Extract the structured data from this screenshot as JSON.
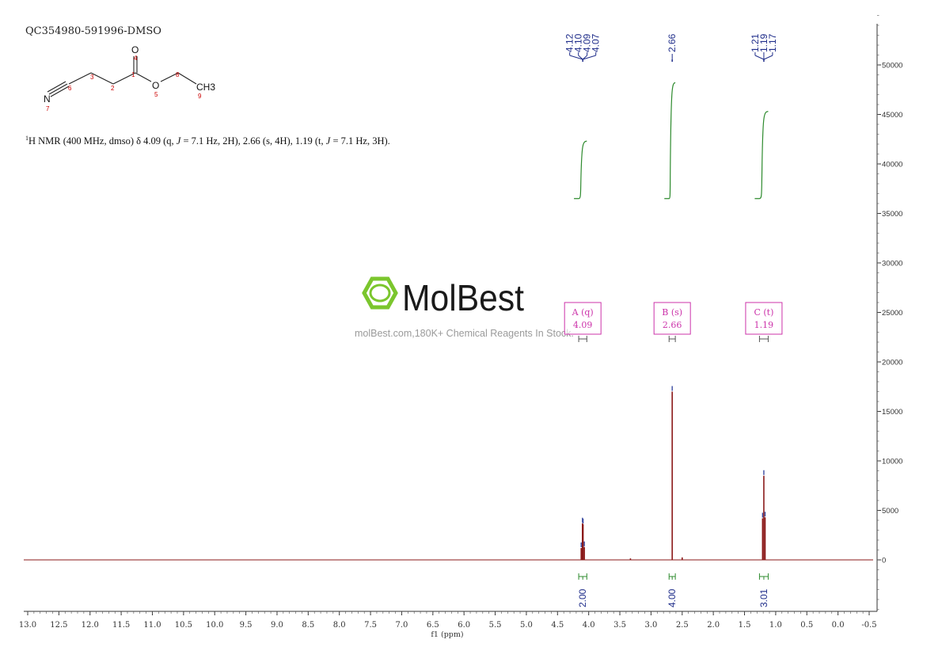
{
  "sample_id": "QC354980-591996-DMSO",
  "nmr_summary": {
    "nucleus_sup": "1",
    "prefix": "H NMR (400 MHz, dmso) δ 4.09 (q, ",
    "j1": "J",
    "mid1": " = 7.1 Hz, 2H), 2.66 (s, 4H), 1.19 (t, ",
    "j2": "J",
    "mid2": " = 7.1 Hz, 3H)."
  },
  "watermark": {
    "brand": "MolBest",
    "tagline": "molBest.com,180K+ Chemical Reagents In Stock."
  },
  "structure": {
    "atoms": [
      {
        "label": "N",
        "num": "7"
      },
      {
        "label": "",
        "num": "6"
      },
      {
        "label": "",
        "num": "3"
      },
      {
        "label": "",
        "num": "2"
      },
      {
        "label": "",
        "num": "1"
      },
      {
        "label": "O",
        "num": "4"
      },
      {
        "label": "O",
        "num": "5"
      },
      {
        "label": "",
        "num": "8"
      },
      {
        "label": "CH3",
        "num": "9"
      }
    ]
  },
  "colors": {
    "spectrum": "#8b1a1a",
    "integral": "#2e8b2e",
    "peak_label": "#1f2d8a",
    "multiplet_box": "#cc33aa",
    "atom_number": "#cc0000",
    "logo": "#7bc62d"
  },
  "chart_data": {
    "type": "line",
    "xlabel": "f1 (ppm)",
    "xlim": [
      13.0,
      -0.5
    ],
    "ylim": [
      -5000,
      55000
    ],
    "x_ticks": [
      "13.0",
      "12.5",
      "12.0",
      "11.5",
      "11.0",
      "10.5",
      "10.0",
      "9.5",
      "9.0",
      "8.5",
      "8.0",
      "7.5",
      "7.0",
      "6.5",
      "6.0",
      "5.5",
      "5.0",
      "4.5",
      "4.0",
      "3.5",
      "3.0",
      "2.5",
      "2.0",
      "1.5",
      "1.0",
      "0.5",
      "0.0",
      "-0.5"
    ],
    "y_ticks": [
      "50000",
      "45000",
      "40000",
      "35000",
      "30000",
      "25000",
      "20000",
      "15000",
      "10000",
      "5000",
      "0"
    ],
    "peak_labels": [
      {
        "group": [
          {
            "text": "4.12",
            "ppm": 4.12
          },
          {
            "text": "4.10",
            "ppm": 4.1
          },
          {
            "text": "4.09",
            "ppm": 4.09
          },
          {
            "text": "4.07",
            "ppm": 4.07
          }
        ],
        "center": 4.095
      },
      {
        "group": [
          {
            "text": "2.66",
            "ppm": 2.66
          }
        ],
        "center": 2.66
      },
      {
        "group": [
          {
            "text": "1.21",
            "ppm": 1.21
          },
          {
            "text": "1.19",
            "ppm": 1.19
          },
          {
            "text": "1.17",
            "ppm": 1.17
          }
        ],
        "center": 1.19
      }
    ],
    "peaks": [
      {
        "ppm": 4.12,
        "height": 1200
      },
      {
        "ppm": 4.1,
        "height": 3700
      },
      {
        "ppm": 4.09,
        "height": 3600
      },
      {
        "ppm": 4.07,
        "height": 1300
      },
      {
        "ppm": 2.66,
        "height": 17000
      },
      {
        "ppm": 1.21,
        "height": 4200
      },
      {
        "ppm": 1.19,
        "height": 8500
      },
      {
        "ppm": 1.17,
        "height": 4300
      },
      {
        "ppm": 3.33,
        "height": 150
      },
      {
        "ppm": 2.5,
        "height": 250
      }
    ],
    "multiplets": [
      {
        "label": "A (q)",
        "shift": "4.09",
        "from": 4.16,
        "to": 4.03
      },
      {
        "label": "B (s)",
        "shift": "2.66",
        "from": 2.71,
        "to": 2.61
      },
      {
        "label": "C (t)",
        "shift": "1.19",
        "from": 1.26,
        "to": 1.12
      }
    ],
    "integrals": [
      {
        "value": "2.00",
        "from": 4.16,
        "to": 4.03,
        "y_start": 36500,
        "y_end": 42300
      },
      {
        "value": "4.00",
        "from": 2.71,
        "to": 2.61,
        "y_start": 36500,
        "y_end": 48200
      },
      {
        "value": "3.01",
        "from": 1.26,
        "to": 1.12,
        "y_start": 36500,
        "y_end": 45300
      }
    ]
  }
}
